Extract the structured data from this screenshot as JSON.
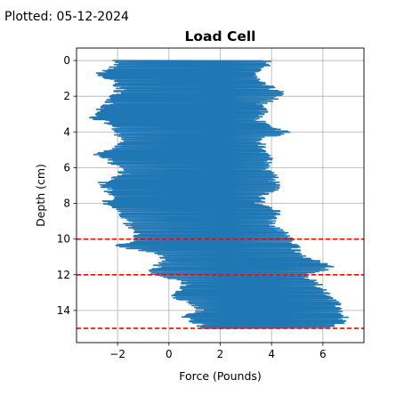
{
  "plotted_stamp": "Plotted: 05-12-2024",
  "chart_data": {
    "type": "line",
    "title": "Load Cell",
    "xlabel": "Force (Pounds)",
    "ylabel": "Depth (cm)",
    "xlim": [
      -3.6,
      7.6
    ],
    "ylim": [
      15.8,
      -0.7
    ],
    "y_inverted": true,
    "xticks": [
      -2,
      0,
      2,
      4,
      6
    ],
    "xtick_labels": [
      "−2",
      "0",
      "2",
      "4",
      "6"
    ],
    "yticks": [
      0,
      2,
      4,
      6,
      8,
      10,
      12,
      14
    ],
    "ytick_labels": [
      "0",
      "2",
      "4",
      "6",
      "8",
      "10",
      "12",
      "14"
    ],
    "grid": true,
    "line_color": "#1f77b4",
    "series": [
      {
        "depth": [
          0.0,
          0.4,
          0.8,
          1.2,
          1.6,
          2.0,
          2.4,
          2.8,
          3.2,
          3.6,
          4.0,
          4.4,
          4.8,
          5.2,
          5.6,
          6.0,
          6.4,
          6.8,
          7.2,
          7.6,
          8.0,
          8.4,
          8.8,
          9.2,
          9.6,
          10.0,
          10.4,
          10.8,
          11.2,
          11.6,
          12.0,
          12.4,
          12.8,
          13.2,
          13.6,
          14.0,
          14.4,
          14.8,
          15.0
        ],
        "force_min": [
          -2.2,
          -2.4,
          -3.0,
          -2.3,
          -2.1,
          -2.3,
          -2.6,
          -3.0,
          -3.2,
          -2.3,
          -2.2,
          -2.0,
          -2.2,
          -3.0,
          -2.5,
          -2.2,
          -1.9,
          -2.8,
          -2.6,
          -2.4,
          -2.7,
          -2.1,
          -1.9,
          -1.8,
          -1.6,
          -1.3,
          -2.2,
          -0.6,
          -0.3,
          -0.8,
          -0.8,
          0.5,
          0.4,
          0.0,
          0.7,
          1.1,
          0.4,
          1.1,
          1.0
        ],
        "force_max": [
          4.1,
          3.9,
          3.4,
          3.8,
          4.3,
          4.7,
          3.8,
          4.0,
          3.6,
          3.9,
          4.8,
          3.8,
          3.8,
          3.9,
          4.1,
          3.9,
          4.2,
          4.4,
          4.3,
          3.9,
          3.7,
          4.4,
          4.3,
          4.1,
          4.6,
          5.0,
          5.2,
          5.1,
          5.9,
          6.5,
          5.5,
          5.9,
          6.1,
          6.4,
          6.7,
          6.9,
          7.0,
          6.8,
          6.3
        ]
      }
    ],
    "reference_lines": {
      "depths": [
        10,
        12,
        15
      ],
      "color": "#ff0000",
      "style": "dashed"
    }
  }
}
